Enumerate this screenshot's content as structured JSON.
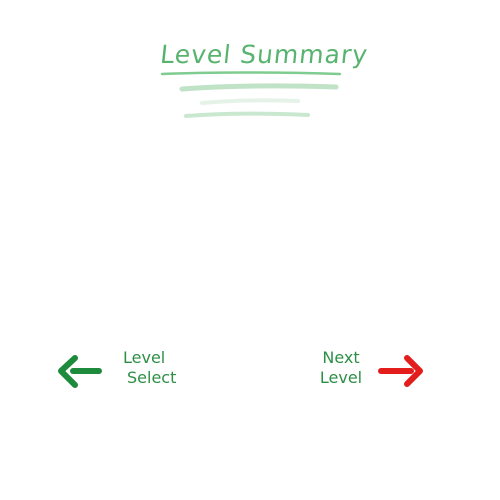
{
  "screen": {
    "title": "Level Summary"
  },
  "navigation": {
    "previous": {
      "line1": "Level",
      "line2": "Select",
      "icon": "left-arrow-icon",
      "color": "#1e8a3c"
    },
    "next": {
      "line1": "Next",
      "line2": "Level",
      "icon": "right-arrow-icon",
      "color": "#e31c1c"
    }
  }
}
